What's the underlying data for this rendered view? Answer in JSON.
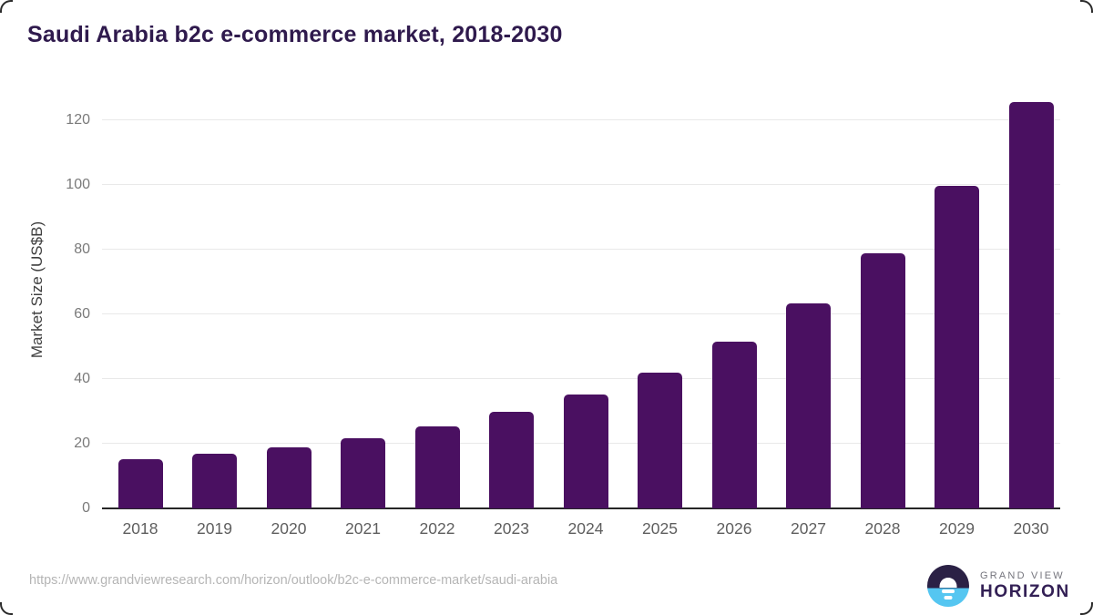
{
  "title": "Saudi Arabia b2c e-commerce market, 2018-2030",
  "footer": {
    "source_url": "https://www.grandviewresearch.com/horizon/outlook/b2c-e-commerce-market/saudi-arabia",
    "brand": {
      "line1": "GRAND VIEW",
      "line2": "HORIZON"
    }
  },
  "colors": {
    "bar": "#4a1061",
    "title": "#2f1a4d",
    "axis_line": "#262626",
    "gridline": "#e9e9e9",
    "y_tick": "#7a7a7a",
    "x_tick": "#5e5e5e",
    "y_axis_title": "#3f3f3f",
    "source_url": "#b5b5b5",
    "logo_dark_half": "#2b2145",
    "logo_blue_half": "#55c6f1",
    "logo_gray_text": "#75757d",
    "logo_purple_text": "#332055"
  },
  "chart_data": {
    "type": "bar",
    "title": "Saudi Arabia b2c e-commerce market, 2018-2030",
    "categories": [
      "2018",
      "2019",
      "2020",
      "2021",
      "2022",
      "2023",
      "2024",
      "2025",
      "2026",
      "2027",
      "2028",
      "2029",
      "2030"
    ],
    "values": [
      15.1,
      17.0,
      19.0,
      21.7,
      25.3,
      29.9,
      35.2,
      42.1,
      51.5,
      63.5,
      79.0,
      99.6,
      125.5
    ],
    "xlabel": "",
    "ylabel": "Market Size (US$B)",
    "ylim": [
      0,
      127
    ],
    "yticks": [
      0,
      20,
      40,
      60,
      80,
      100,
      120
    ],
    "grid": true,
    "legend": null,
    "bar_color": "#4a1061"
  }
}
